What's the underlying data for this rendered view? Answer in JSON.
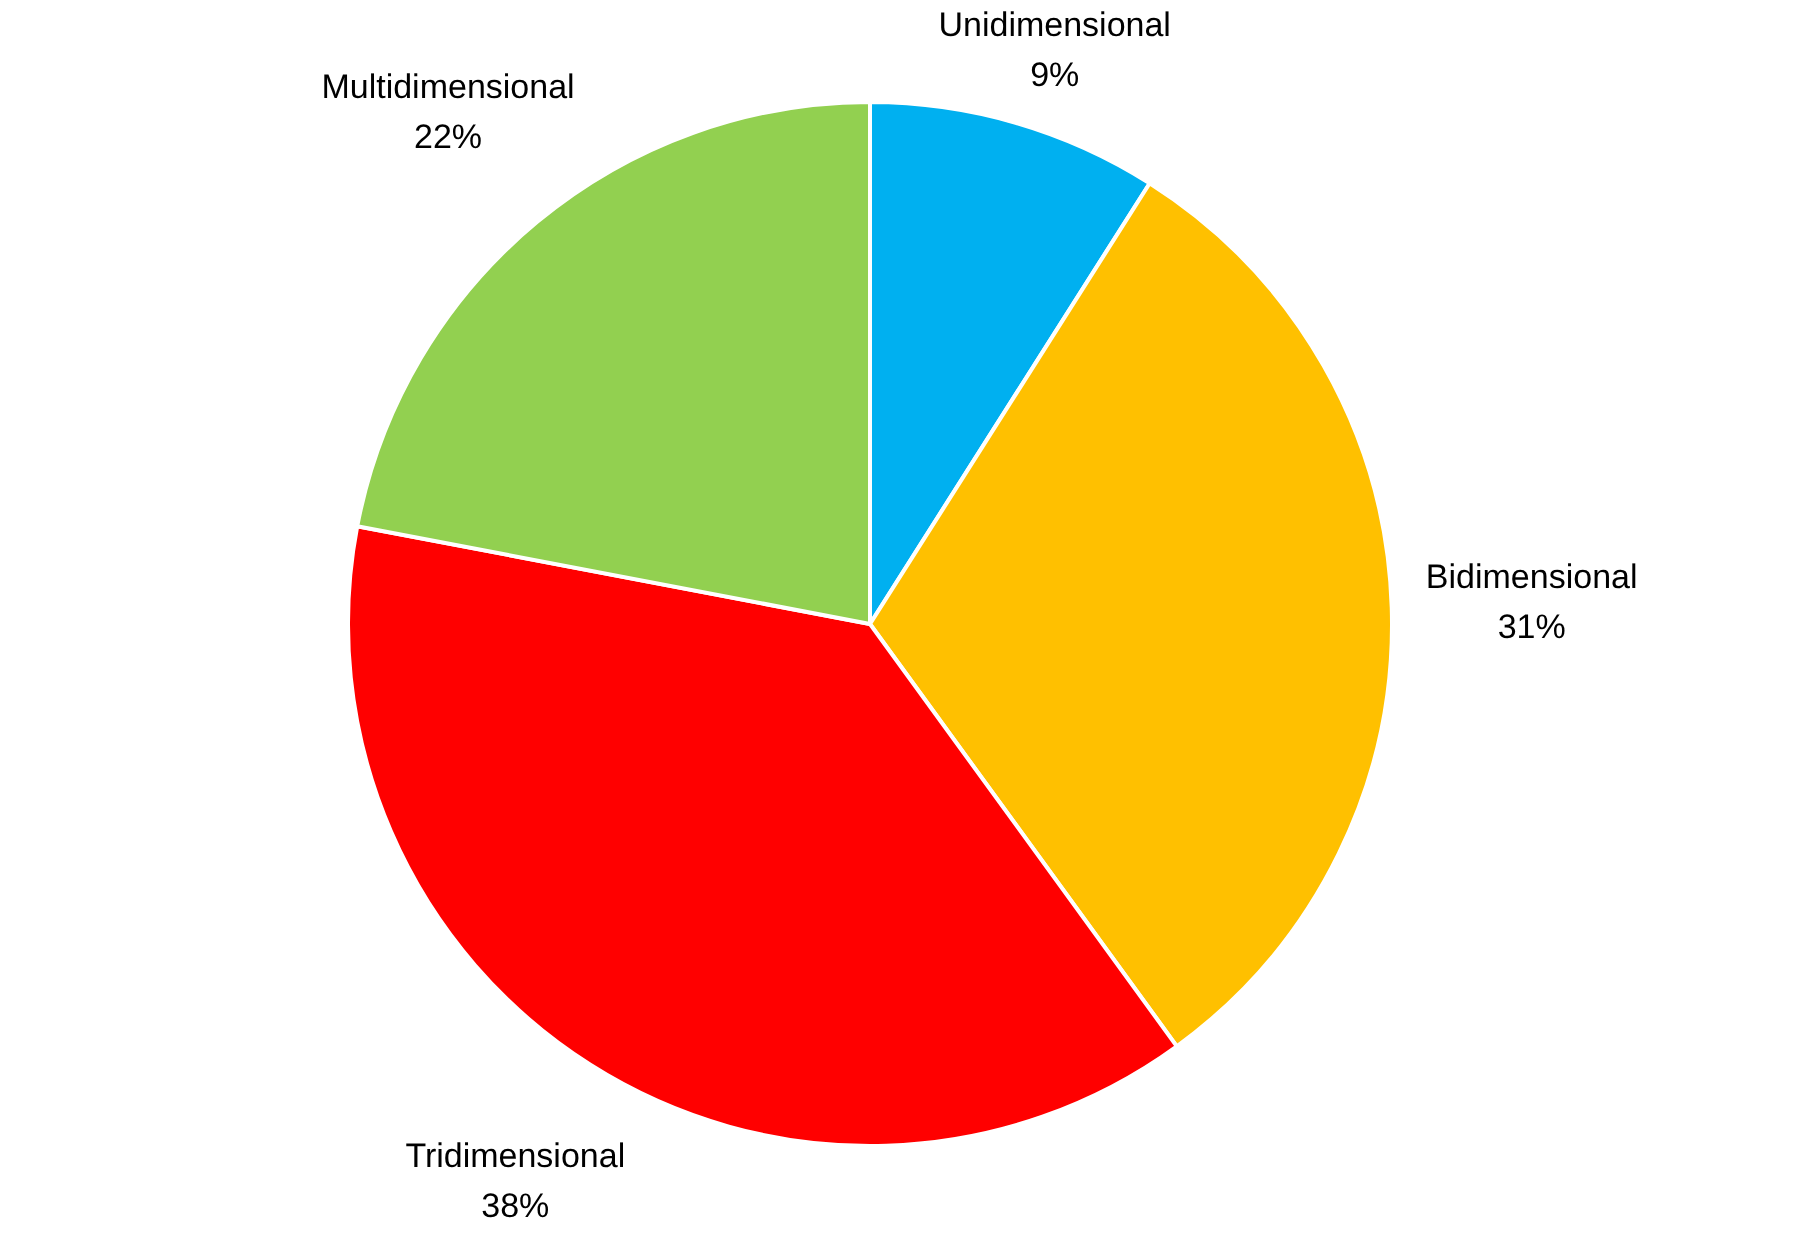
{
  "chart_data": {
    "type": "pie",
    "categories": [
      "Unidimensional",
      "Bidimensional",
      "Tridimensional",
      "Multidimensional"
    ],
    "values": [
      9,
      31,
      38,
      22
    ],
    "colors": [
      "#00b0f0",
      "#ffc000",
      "#ff0000",
      "#92d050"
    ],
    "value_labels": [
      "9%",
      "31%",
      "38%",
      "22%"
    ],
    "legend": false
  }
}
